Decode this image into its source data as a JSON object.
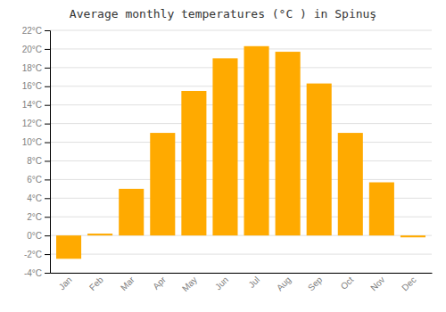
{
  "chart_data": {
    "type": "bar",
    "title": "Average monthly temperatures (°C ) in Spinuş",
    "categories": [
      "Jan",
      "Feb",
      "Mar",
      "Apr",
      "May",
      "Jun",
      "Jul",
      "Aug",
      "Sep",
      "Oct",
      "Nov",
      "Dec"
    ],
    "values": [
      -2.5,
      0.2,
      5.0,
      11.0,
      15.5,
      19.0,
      20.3,
      19.7,
      16.3,
      11.0,
      5.7,
      -0.2
    ],
    "color": "#FFAA00",
    "ylim": [
      -4,
      22
    ],
    "yticks": [
      {
        "value": -4,
        "label": "-4°C"
      },
      {
        "value": -2,
        "label": "-2°C"
      },
      {
        "value": 0,
        "label": "0°C"
      },
      {
        "value": 2,
        "label": "2°C"
      },
      {
        "value": 4,
        "label": "4°C"
      },
      {
        "value": 6,
        "label": "6°C"
      },
      {
        "value": 8,
        "label": "8°C"
      },
      {
        "value": 10,
        "label": "10°C"
      },
      {
        "value": 12,
        "label": "12°C"
      },
      {
        "value": 14,
        "label": "14°C"
      },
      {
        "value": 16,
        "label": "16°C"
      },
      {
        "value": 18,
        "label": "18°C"
      },
      {
        "value": 20,
        "label": "20°C"
      },
      {
        "value": 22,
        "label": "22°C"
      }
    ],
    "grid": true
  }
}
